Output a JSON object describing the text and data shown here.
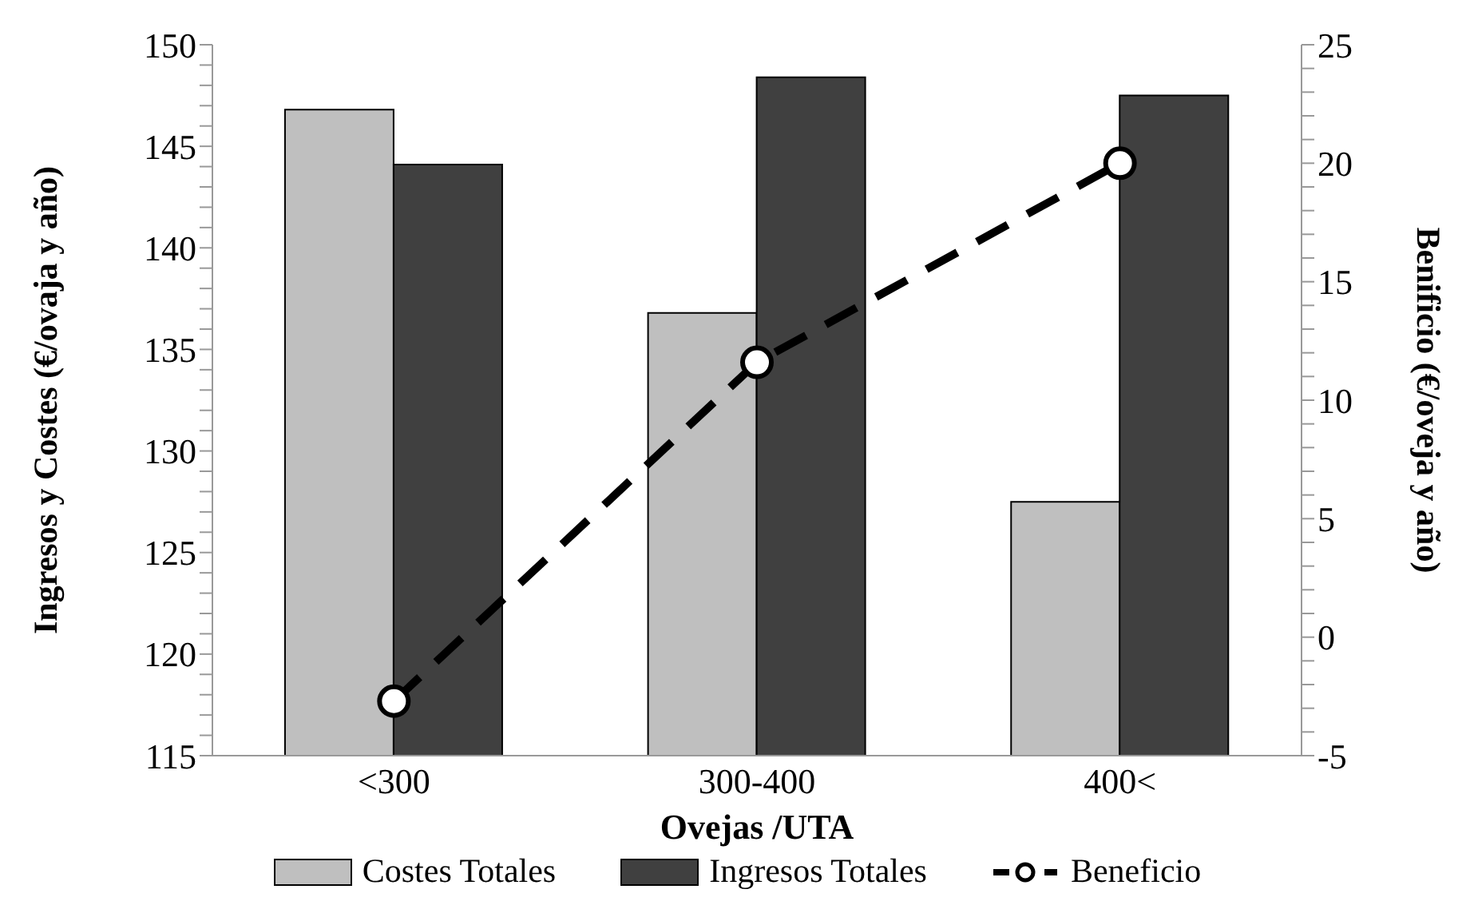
{
  "chart_data": {
    "type": "bar",
    "xlabel": "Ovejas /UTA",
    "ylabel": "Ingresos y Costes (€/ovaja y año)",
    "y2label": "Benificio (€/oveja y año)",
    "categories": [
      "<300",
      "300-400",
      "400<"
    ],
    "series": [
      {
        "name": "Costes Totales",
        "color": "#bfbfbf",
        "values": [
          146.8,
          136.8,
          127.5
        ]
      },
      {
        "name": "Ingresos Totales",
        "color": "#404040",
        "values": [
          144.1,
          148.4,
          147.5
        ]
      },
      {
        "name": "Beneficio",
        "type": "line",
        "axis": "y2",
        "color": "#000000",
        "marker": "circle",
        "line_style": "dashed",
        "values": [
          -2.7,
          11.6,
          20.0
        ]
      }
    ],
    "ylim": [
      115,
      150
    ],
    "yticks": [
      115,
      {
        "value": 116,
        "label": null
      },
      {
        "value": 117,
        "label": null
      },
      {
        "value": 118,
        "label": null
      },
      {
        "value": 119,
        "label": null
      },
      120,
      {
        "value": 121,
        "label": null
      },
      {
        "value": 122,
        "label": null
      },
      {
        "value": 123,
        "label": null
      },
      {
        "value": 124,
        "label": null
      },
      125,
      {
        "value": 126,
        "label": null
      },
      {
        "value": 127,
        "label": null
      },
      {
        "value": 128,
        "label": null
      },
      {
        "value": 129,
        "label": null
      },
      130,
      {
        "value": 131,
        "label": null
      },
      {
        "value": 132,
        "label": null
      },
      {
        "value": 133,
        "label": null
      },
      {
        "value": 134,
        "label": null
      },
      135,
      {
        "value": 136,
        "label": null
      },
      {
        "value": 137,
        "label": null
      },
      {
        "value": 138,
        "label": null
      },
      {
        "value": 139,
        "label": null
      },
      140,
      {
        "value": 141,
        "label": null
      },
      {
        "value": 142,
        "label": null
      },
      {
        "value": 143,
        "label": null
      },
      {
        "value": 144,
        "label": null
      },
      145,
      {
        "value": 146,
        "label": null
      },
      {
        "value": 147,
        "label": null
      },
      {
        "value": 148,
        "label": null
      },
      {
        "value": 149,
        "label": null
      },
      150
    ],
    "y2lim": [
      -5,
      25
    ],
    "y2ticks": [
      -5,
      {
        "value": -4,
        "label": null
      },
      {
        "value": -3,
        "label": null
      },
      {
        "value": -2,
        "label": null
      },
      {
        "value": -1,
        "label": null
      },
      0,
      {
        "value": 1,
        "label": null
      },
      {
        "value": 2,
        "label": null
      },
      {
        "value": 3,
        "label": null
      },
      {
        "value": 4,
        "label": null
      },
      5,
      {
        "value": 6,
        "label": null
      },
      {
        "value": 7,
        "label": null
      },
      {
        "value": 8,
        "label": null
      },
      {
        "value": 9,
        "label": null
      },
      10,
      {
        "value": 11,
        "label": null
      },
      {
        "value": 12,
        "label": null
      },
      {
        "value": 13,
        "label": null
      },
      {
        "value": 14,
        "label": null
      },
      15,
      {
        "value": 16,
        "label": null
      },
      {
        "value": 17,
        "label": null
      },
      {
        "value": 18,
        "label": null
      },
      {
        "value": 19,
        "label": null
      },
      20,
      {
        "value": 21,
        "label": null
      },
      {
        "value": 22,
        "label": null
      },
      {
        "value": 23,
        "label": null
      },
      {
        "value": 24,
        "label": null
      },
      25
    ],
    "grid": false,
    "legend": "bottom"
  }
}
